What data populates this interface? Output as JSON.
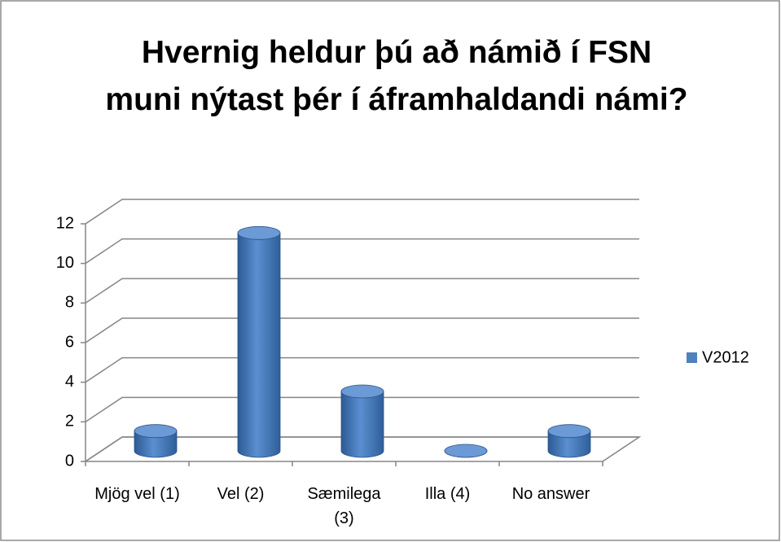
{
  "chart_data": {
    "type": "bar3d",
    "title": "Hvernig heldur þú að námið í FSN muni nýtast þér í áframhaldandi námi?",
    "categories": [
      "Mjög vel (1)",
      "Vel (2)",
      "Sæmilega (3)",
      "Illa (4)",
      "No answer"
    ],
    "series": [
      {
        "name": "V2012",
        "color": "#4f81bd",
        "values": [
          1,
          11,
          3,
          0,
          1
        ]
      }
    ],
    "ylim": [
      0,
      12
    ],
    "yticks": [
      0,
      2,
      4,
      6,
      8,
      10,
      12
    ],
    "grid": true,
    "legend": "right"
  }
}
